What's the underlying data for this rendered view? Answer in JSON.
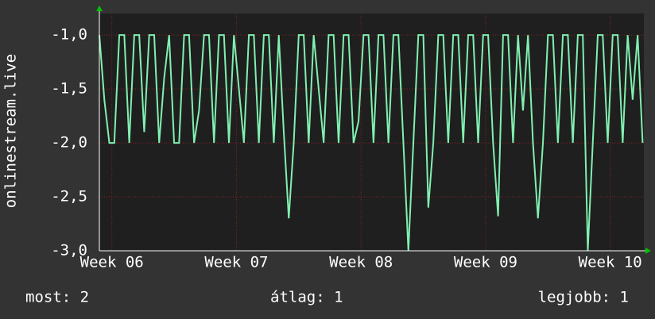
{
  "chart_data": {
    "type": "line",
    "ylabel": "onlinestream.live",
    "x": [
      5.9,
      5.94,
      5.98,
      6.02,
      6.06,
      6.1,
      6.14,
      6.18,
      6.22,
      6.26,
      6.3,
      6.34,
      6.38,
      6.42,
      6.46,
      6.5,
      6.54,
      6.58,
      6.62,
      6.66,
      6.7,
      6.74,
      6.78,
      6.82,
      6.86,
      6.9,
      6.94,
      6.98,
      7.02,
      7.06,
      7.1,
      7.14,
      7.18,
      7.22,
      7.26,
      7.3,
      7.34,
      7.38,
      7.42,
      7.46,
      7.5,
      7.54,
      7.58,
      7.62,
      7.66,
      7.7,
      7.74,
      7.78,
      7.82,
      7.86,
      7.9,
      7.94,
      7.98,
      8.02,
      8.06,
      8.1,
      8.14,
      8.18,
      8.22,
      8.26,
      8.3,
      8.34,
      8.38,
      8.42,
      8.46,
      8.5,
      8.54,
      8.58,
      8.62,
      8.66,
      8.7,
      8.74,
      8.78,
      8.82,
      8.86,
      8.9,
      8.94,
      8.98,
      9.02,
      9.06,
      9.1,
      9.14,
      9.18,
      9.22,
      9.26,
      9.3,
      9.34,
      9.38,
      9.42,
      9.46,
      9.5,
      9.54,
      9.58,
      9.62,
      9.66,
      9.7,
      9.74,
      9.78,
      9.82,
      9.86,
      9.9,
      9.94,
      9.98,
      10.02,
      10.06,
      10.1,
      10.14,
      10.18,
      10.22,
      10.26
    ],
    "series": [
      {
        "color": "#80f0b0",
        "values": [
          -1,
          -1.6,
          -2,
          -2,
          -1,
          -1,
          -2,
          -1,
          -1,
          -1.9,
          -1,
          -1,
          -2,
          -1.4,
          -1,
          -2,
          -2,
          -1,
          -1,
          -2,
          -1.7,
          -1,
          -1,
          -2,
          -1,
          -1,
          -2,
          -1,
          -1.5,
          -2,
          -1,
          -1,
          -2,
          -1,
          -1,
          -2,
          -1,
          -1.9,
          -2.7,
          -2,
          -1,
          -1,
          -2,
          -1,
          -1.5,
          -2,
          -1,
          -1,
          -2,
          -1,
          -1,
          -2,
          -1.8,
          -1,
          -1,
          -2,
          -1,
          -1,
          -2,
          -1,
          -1,
          -2,
          -3,
          -2,
          -1,
          -1,
          -2.6,
          -2,
          -1,
          -1,
          -2,
          -1,
          -1,
          -2,
          -1,
          -1,
          -2,
          -1,
          -1,
          -2,
          -2.68,
          -1,
          -1,
          -2,
          -1,
          -1.7,
          -1,
          -2,
          -2.7,
          -2,
          -1,
          -1,
          -2,
          -1,
          -1,
          -2,
          -1,
          -1,
          -3,
          -2,
          -1,
          -1,
          -2,
          -1,
          -1,
          -2,
          -1,
          -1.6,
          -1,
          -2
        ]
      }
    ],
    "xlim": [
      5.9,
      10.27
    ],
    "xticks": [
      {
        "value": 6,
        "label": "Week 06"
      },
      {
        "value": 7,
        "label": "Week 07"
      },
      {
        "value": 8,
        "label": "Week 08"
      },
      {
        "value": 9,
        "label": "Week 09"
      },
      {
        "value": 10,
        "label": "Week 10"
      }
    ],
    "ylim": [
      -3.0,
      -0.8
    ],
    "yticks": [
      {
        "value": -3,
        "label": "-3,0"
      },
      {
        "value": -2.5,
        "label": "-2,5"
      },
      {
        "value": -2,
        "label": "-2,0"
      },
      {
        "value": -1.5,
        "label": "-1,5"
      },
      {
        "value": -1,
        "label": "-1,0"
      }
    ],
    "grid": true
  },
  "footer": [
    "most: 2",
    "átlag: 1",
    "legjobb: 1"
  ]
}
